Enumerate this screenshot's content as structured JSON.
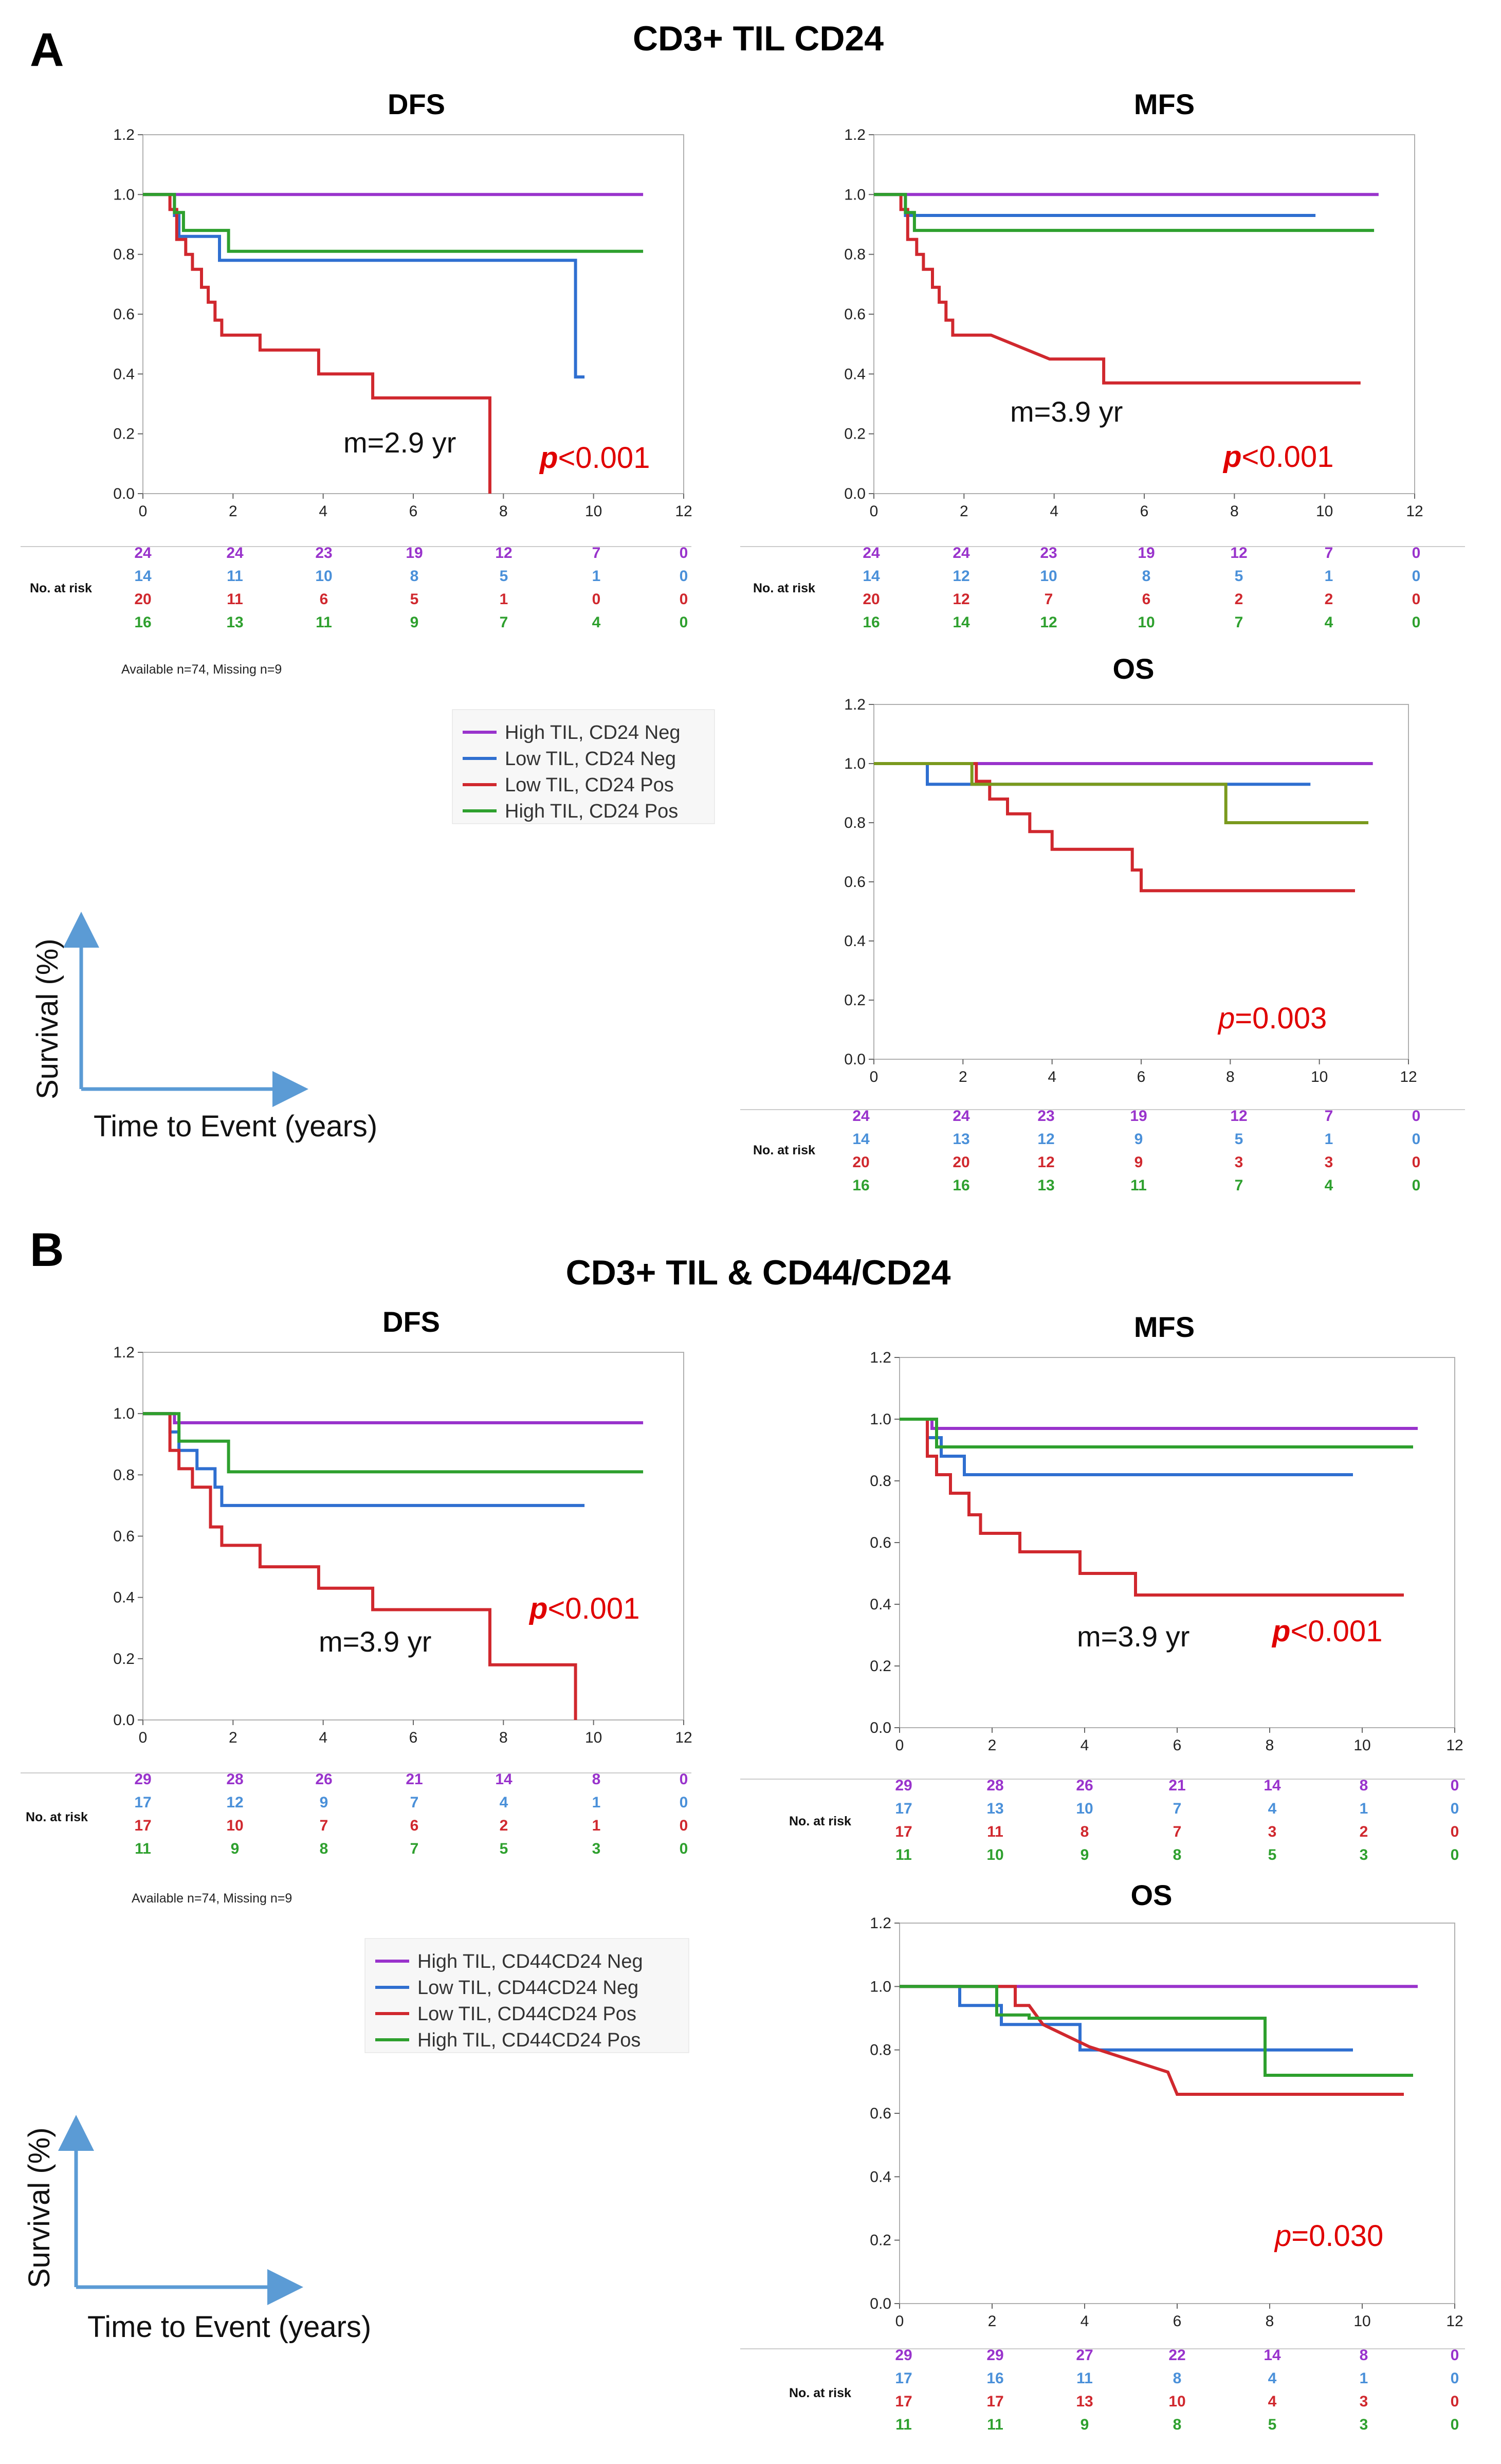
{
  "colors": {
    "purple": "#9933CC",
    "blue": "#2F6FD0",
    "red": "#D0282E",
    "green": "#2EA02E",
    "olive": "#7A9A1E",
    "risk_blue": "#4A90D9",
    "pval": "#E00000",
    "arrow": "#5B9BD5"
  },
  "panels": [
    {
      "letter": "A",
      "title": "CD3+ TIL CD24",
      "footnote": "Available n=74,  Missing n=9",
      "legend": [
        "High TIL, CD24 Neg",
        "Low TIL, CD24 Neg",
        "Low TIL, CD24 Pos",
        "High TIL, CD24 Pos"
      ],
      "axis_cartoon": {
        "ylabel": "Survival (%)",
        "xlabel": "Time to Event (years)"
      }
    },
    {
      "letter": "B",
      "title": "CD3+ TIL & CD44/CD24",
      "footnote": "Available n=74,  Missing n=9",
      "legend": [
        "High TIL, CD44CD24 Neg",
        "Low TIL, CD44CD24 Neg",
        "Low TIL, CD44CD24 Pos",
        "High TIL, CD44CD24 Pos"
      ],
      "axis_cartoon": {
        "ylabel": "Survival (%)",
        "xlabel": "Time to Event (years)"
      }
    }
  ],
  "chart_data": [
    {
      "type": "line",
      "panel": "A",
      "title": "DFS",
      "xlim": [
        0,
        12
      ],
      "ylim": [
        0,
        1.2
      ],
      "xticks": [
        "0",
        "2",
        "4",
        "6",
        "8",
        "10",
        "12"
      ],
      "yticks": [
        "0.0",
        "0.2",
        "0.4",
        "0.6",
        "0.8",
        "1.0",
        "1.2"
      ],
      "median_label": "m=2.9 yr",
      "p_label": {
        "p": "p",
        "rest": "<0.001",
        "bold": true
      },
      "risk_label": "No. at risk",
      "series": [
        {
          "name": "High TIL, CD24 Neg",
          "color": "purple",
          "x": [
            0,
            11.1
          ],
          "y": [
            1.0,
            1.0
          ],
          "risk": [
            "24",
            "24",
            "23",
            "19",
            "12",
            "7",
            "0"
          ]
        },
        {
          "name": "Low TIL, CD24 Neg",
          "color": "blue",
          "x": [
            0,
            0.7,
            0.7,
            0.8,
            0.8,
            1.7,
            1.7,
            9.6,
            9.6,
            9.8
          ],
          "y": [
            1.0,
            1.0,
            0.93,
            0.93,
            0.86,
            0.86,
            0.78,
            0.78,
            0.39,
            0.39
          ],
          "risk": [
            "14",
            "11",
            "10",
            "8",
            "5",
            "1",
            "0"
          ]
        },
        {
          "name": "Low TIL, CD24 Pos",
          "color": "red",
          "x": [
            0,
            0.6,
            0.6,
            0.75,
            0.75,
            0.95,
            0.95,
            1.1,
            1.1,
            1.3,
            1.3,
            1.45,
            1.45,
            1.6,
            1.6,
            1.75,
            1.75,
            2.6,
            2.6,
            3.9,
            3.9,
            5.1,
            5.1,
            7.7,
            7.7
          ],
          "y": [
            1.0,
            1.0,
            0.95,
            0.95,
            0.85,
            0.85,
            0.8,
            0.8,
            0.75,
            0.75,
            0.69,
            0.69,
            0.64,
            0.64,
            0.58,
            0.58,
            0.53,
            0.53,
            0.48,
            0.48,
            0.4,
            0.4,
            0.32,
            0.32,
            0.0
          ],
          "risk": [
            "20",
            "11",
            "6",
            "5",
            "1",
            "0",
            "0"
          ]
        },
        {
          "name": "High TIL, CD24 Pos",
          "color": "green",
          "x": [
            0,
            0.7,
            0.7,
            0.9,
            0.9,
            1.9,
            1.9,
            11.1
          ],
          "y": [
            1.0,
            1.0,
            0.94,
            0.94,
            0.88,
            0.88,
            0.81,
            0.81
          ],
          "risk": [
            "16",
            "13",
            "11",
            "9",
            "7",
            "4",
            "0"
          ]
        }
      ]
    },
    {
      "type": "line",
      "panel": "A",
      "title": "MFS",
      "xlim": [
        0,
        12
      ],
      "ylim": [
        0,
        1.2
      ],
      "xticks": [
        "0",
        "2",
        "4",
        "6",
        "8",
        "10",
        "12"
      ],
      "yticks": [
        "0.0",
        "0.2",
        "0.4",
        "0.6",
        "0.8",
        "1.0",
        "1.2"
      ],
      "median_label": "m=3.9 yr",
      "p_label": {
        "p": "p",
        "rest": "<0.001",
        "bold": true
      },
      "risk_label": "No. at risk",
      "series": [
        {
          "name": "High TIL, CD24 Neg",
          "color": "purple",
          "x": [
            0,
            11.2
          ],
          "y": [
            1.0,
            1.0
          ],
          "risk": [
            "24",
            "24",
            "23",
            "19",
            "12",
            "7",
            "0"
          ]
        },
        {
          "name": "Low TIL, CD24 Neg",
          "color": "blue",
          "x": [
            0,
            0.7,
            0.7,
            9.8
          ],
          "y": [
            1.0,
            1.0,
            0.93,
            0.93
          ],
          "risk": [
            "14",
            "12",
            "10",
            "8",
            "5",
            "1",
            "0"
          ]
        },
        {
          "name": "Low TIL, CD24 Pos",
          "color": "red",
          "x": [
            0,
            0.6,
            0.6,
            0.75,
            0.75,
            0.95,
            0.95,
            1.1,
            1.1,
            1.3,
            1.3,
            1.45,
            1.45,
            1.6,
            1.6,
            1.75,
            1.75,
            2.6,
            2.6,
            3.9,
            3.9,
            5.1,
            5.1,
            10.8
          ],
          "y": [
            1.0,
            1.0,
            0.95,
            0.95,
            0.85,
            0.85,
            0.8,
            0.8,
            0.75,
            0.75,
            0.69,
            0.69,
            0.64,
            0.64,
            0.58,
            0.58,
            0.53,
            0.53,
            0.53,
            0.45,
            0.45,
            0.45,
            0.37,
            0.37
          ],
          "risk": [
            "20",
            "12",
            "7",
            "6",
            "2",
            "2",
            "0"
          ]
        },
        {
          "name": "High TIL, CD24 Pos",
          "color": "green",
          "x": [
            0,
            0.7,
            0.7,
            0.9,
            0.9,
            11.1
          ],
          "y": [
            1.0,
            1.0,
            0.94,
            0.94,
            0.88,
            0.88
          ],
          "risk": [
            "16",
            "14",
            "12",
            "10",
            "7",
            "4",
            "0"
          ]
        }
      ]
    },
    {
      "type": "line",
      "panel": "A",
      "title": "OS",
      "xlim": [
        0,
        12
      ],
      "ylim": [
        0,
        1.2
      ],
      "xticks": [
        "0",
        "2",
        "4",
        "6",
        "8",
        "10",
        "12"
      ],
      "yticks": [
        "0.0",
        "0.2",
        "0.4",
        "0.6",
        "0.8",
        "1.0",
        "1.2"
      ],
      "median_label": "",
      "p_label": {
        "p": "p",
        "rest": "=0.003",
        "bold": false
      },
      "risk_label": "No. at risk",
      "series": [
        {
          "name": "High TIL, CD24 Neg",
          "color": "purple",
          "x": [
            0,
            11.2
          ],
          "y": [
            1.0,
            1.0
          ],
          "risk": [
            "24",
            "24",
            "23",
            "19",
            "12",
            "7",
            "0"
          ]
        },
        {
          "name": "Low TIL, CD24 Neg",
          "color": "blue",
          "x": [
            0,
            1.2,
            1.2,
            9.8
          ],
          "y": [
            1.0,
            1.0,
            0.93,
            0.93
          ],
          "risk": [
            "14",
            "13",
            "12",
            "9",
            "5",
            "1",
            "0"
          ]
        },
        {
          "name": "Low TIL, CD24 Pos",
          "color": "red",
          "x": [
            0,
            2.3,
            2.3,
            2.6,
            2.6,
            3.0,
            3.0,
            3.5,
            3.5,
            4.0,
            4.0,
            5.8,
            5.8,
            6.0,
            6.0,
            10.8
          ],
          "y": [
            1.0,
            1.0,
            0.94,
            0.94,
            0.88,
            0.88,
            0.83,
            0.83,
            0.77,
            0.77,
            0.71,
            0.71,
            0.64,
            0.64,
            0.57,
            0.57
          ],
          "risk": [
            "20",
            "20",
            "12",
            "9",
            "3",
            "3",
            "0"
          ]
        },
        {
          "name": "High TIL, CD24 Pos",
          "color": "olive",
          "x": [
            0,
            2.2,
            2.2,
            7.9,
            7.9,
            11.1
          ],
          "y": [
            1.0,
            1.0,
            0.93,
            0.93,
            0.8,
            0.8
          ],
          "risk": [
            "16",
            "16",
            "13",
            "11",
            "7",
            "4",
            "0"
          ]
        }
      ]
    },
    {
      "type": "line",
      "panel": "B",
      "title": "DFS",
      "xlim": [
        0,
        12
      ],
      "ylim": [
        0,
        1.2
      ],
      "xticks": [
        "0",
        "2",
        "4",
        "6",
        "8",
        "10",
        "12"
      ],
      "yticks": [
        "0.0",
        "0.2",
        "0.4",
        "0.6",
        "0.8",
        "1.0",
        "1.2"
      ],
      "median_label": "m=3.9 yr",
      "p_label": {
        "p": "p",
        "rest": "<0.001",
        "bold": true
      },
      "risk_label": "No. at risk",
      "series": [
        {
          "name": "High TIL, CD44CD24 Neg",
          "color": "purple",
          "x": [
            0,
            0.7,
            0.7,
            11.1
          ],
          "y": [
            1.0,
            1.0,
            0.97,
            0.97
          ],
          "risk": [
            "29",
            "28",
            "26",
            "21",
            "14",
            "8",
            "0"
          ]
        },
        {
          "name": "Low TIL, CD44CD24 Neg",
          "color": "blue",
          "x": [
            0,
            0.6,
            0.6,
            0.8,
            0.8,
            1.2,
            1.2,
            1.6,
            1.6,
            1.75,
            1.75,
            9.8
          ],
          "y": [
            1.0,
            1.0,
            0.94,
            0.94,
            0.88,
            0.88,
            0.82,
            0.82,
            0.76,
            0.76,
            0.7,
            0.7
          ],
          "risk": [
            "17",
            "12",
            "9",
            "7",
            "4",
            "1",
            "0"
          ]
        },
        {
          "name": "Low TIL, CD44CD24 Pos",
          "color": "red",
          "x": [
            0,
            0.6,
            0.6,
            0.8,
            0.8,
            1.1,
            1.1,
            1.5,
            1.5,
            1.75,
            1.75,
            2.6,
            2.6,
            3.9,
            3.9,
            5.1,
            5.1,
            7.7,
            7.7,
            9.6,
            9.6
          ],
          "y": [
            1.0,
            1.0,
            0.88,
            0.88,
            0.82,
            0.82,
            0.76,
            0.76,
            0.63,
            0.63,
            0.57,
            0.57,
            0.5,
            0.5,
            0.43,
            0.43,
            0.36,
            0.36,
            0.18,
            0.18,
            0.0
          ],
          "risk": [
            "17",
            "10",
            "7",
            "6",
            "2",
            "1",
            "0"
          ]
        },
        {
          "name": "High TIL, CD44CD24 Pos",
          "color": "green",
          "x": [
            0,
            0.8,
            0.8,
            1.9,
            1.9,
            11.1
          ],
          "y": [
            1.0,
            1.0,
            0.91,
            0.91,
            0.81,
            0.81
          ],
          "risk": [
            "11",
            "9",
            "8",
            "7",
            "5",
            "3",
            "0"
          ]
        }
      ]
    },
    {
      "type": "line",
      "panel": "B",
      "title": "MFS",
      "xlim": [
        0,
        12
      ],
      "ylim": [
        0,
        1.2
      ],
      "xticks": [
        "0",
        "2",
        "4",
        "6",
        "8",
        "10",
        "12"
      ],
      "yticks": [
        "0.0",
        "0.2",
        "0.4",
        "0.6",
        "0.8",
        "1.0",
        "1.2"
      ],
      "median_label": "m=3.9 yr",
      "p_label": {
        "p": "p",
        "rest": "<0.001",
        "bold": true
      },
      "risk_label": "No. at risk",
      "series": [
        {
          "name": "High TIL, CD44CD24 Neg",
          "color": "purple",
          "x": [
            0,
            0.7,
            0.7,
            11.2
          ],
          "y": [
            1.0,
            1.0,
            0.97,
            0.97
          ],
          "risk": [
            "29",
            "28",
            "26",
            "21",
            "14",
            "8",
            "0"
          ]
        },
        {
          "name": "Low TIL, CD44CD24 Neg",
          "color": "blue",
          "x": [
            0,
            0.6,
            0.6,
            0.9,
            0.9,
            1.4,
            1.4,
            9.8
          ],
          "y": [
            1.0,
            1.0,
            0.94,
            0.94,
            0.88,
            0.88,
            0.82,
            0.82
          ],
          "risk": [
            "17",
            "13",
            "10",
            "7",
            "4",
            "1",
            "0"
          ]
        },
        {
          "name": "Low TIL, CD44CD24 Pos",
          "color": "red",
          "x": [
            0,
            0.6,
            0.6,
            0.8,
            0.8,
            1.1,
            1.1,
            1.5,
            1.5,
            1.75,
            1.75,
            2.6,
            2.6,
            3.9,
            3.9,
            5.1,
            5.1,
            10.9
          ],
          "y": [
            1.0,
            1.0,
            0.88,
            0.88,
            0.82,
            0.82,
            0.76,
            0.76,
            0.69,
            0.69,
            0.63,
            0.63,
            0.57,
            0.57,
            0.5,
            0.5,
            0.43,
            0.43
          ],
          "risk": [
            "17",
            "11",
            "8",
            "7",
            "3",
            "2",
            "0"
          ]
        },
        {
          "name": "High TIL, CD44CD24 Pos",
          "color": "green",
          "x": [
            0,
            0.8,
            0.8,
            11.1
          ],
          "y": [
            1.0,
            1.0,
            0.91,
            0.91
          ],
          "risk": [
            "11",
            "10",
            "9",
            "8",
            "5",
            "3",
            "0"
          ]
        }
      ]
    },
    {
      "type": "line",
      "panel": "B",
      "title": "OS",
      "xlim": [
        0,
        12
      ],
      "ylim": [
        0,
        1.2
      ],
      "xticks": [
        "0",
        "2",
        "4",
        "6",
        "8",
        "10",
        "12"
      ],
      "yticks": [
        "0.0",
        "0.2",
        "0.4",
        "0.6",
        "0.8",
        "1.0",
        "1.2"
      ],
      "median_label": "",
      "p_label": {
        "p": "p",
        "rest": "=0.030",
        "bold": false
      },
      "risk_label": "No. at risk",
      "series": [
        {
          "name": "High TIL, CD44CD24 Neg",
          "color": "purple",
          "x": [
            0,
            11.2
          ],
          "y": [
            1.0,
            1.0
          ],
          "risk": [
            "29",
            "29",
            "27",
            "22",
            "14",
            "8",
            "0"
          ]
        },
        {
          "name": "Low TIL, CD44CD24 Neg",
          "color": "blue",
          "x": [
            0,
            1.3,
            1.3,
            2.2,
            2.2,
            2.8,
            2.8,
            3.9,
            3.9,
            9.8
          ],
          "y": [
            1.0,
            1.0,
            0.94,
            0.94,
            0.88,
            0.88,
            0.88,
            0.88,
            0.8,
            0.8
          ],
          "risk": [
            "17",
            "16",
            "11",
            "8",
            "4",
            "1",
            "0"
          ]
        },
        {
          "name": "Low TIL, CD44CD24 Pos",
          "color": "red",
          "x": [
            0,
            2.5,
            2.5,
            2.8,
            2.8,
            3.1,
            3.1,
            4.1,
            4.1,
            5.8,
            5.8,
            6.0,
            6.0,
            10.9
          ],
          "y": [
            1.0,
            1.0,
            0.94,
            0.94,
            0.94,
            0.88,
            0.88,
            0.81,
            0.81,
            0.73,
            0.73,
            0.66,
            0.66,
            0.66
          ],
          "risk": [
            "17",
            "17",
            "13",
            "10",
            "4",
            "3",
            "0"
          ]
        },
        {
          "name": "High TIL, CD44CD24 Pos",
          "color": "green",
          "x": [
            0,
            2.1,
            2.1,
            2.8,
            2.8,
            7.9,
            7.9,
            11.1
          ],
          "y": [
            1.0,
            1.0,
            0.91,
            0.91,
            0.9,
            0.9,
            0.72,
            0.72
          ],
          "risk": [
            "11",
            "11",
            "9",
            "8",
            "5",
            "3",
            "0"
          ]
        }
      ]
    }
  ]
}
